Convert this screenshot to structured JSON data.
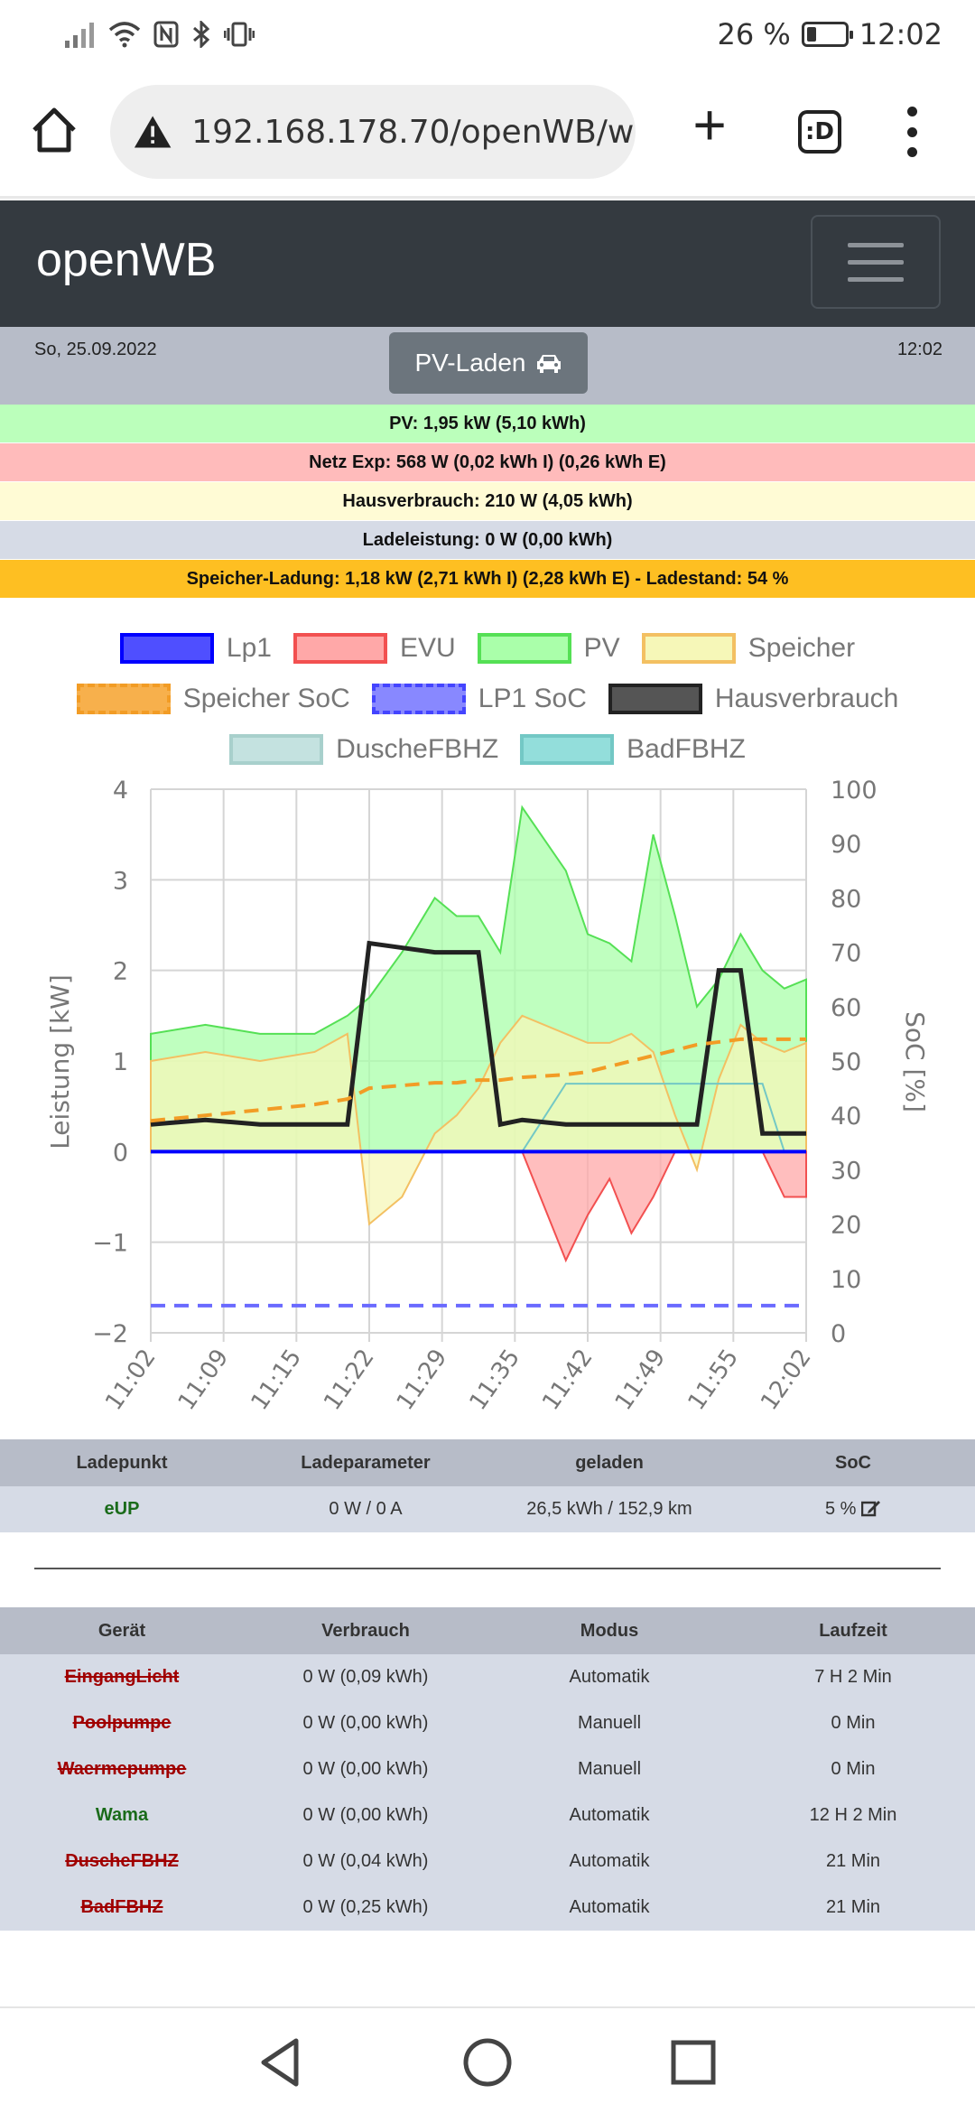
{
  "status_bar": {
    "battery": "26 %",
    "battery_level": 0.26,
    "time": "12:02"
  },
  "browser": {
    "url": "192.168.178.70/openWB/web",
    "tab_label": ":D"
  },
  "app": {
    "brand": "openWB"
  },
  "header": {
    "date": "So, 25.09.2022",
    "time": "12:02",
    "mode_button": "PV-Laden"
  },
  "info_rows": [
    {
      "text": "PV: 1,95 kW (5,10 kWh)",
      "color": "#bbffbb"
    },
    {
      "text": "Netz Exp: 568 W (0,02 kWh I) (0,26 kWh E)",
      "color": "#ffbbbb"
    },
    {
      "text": "Hausverbrauch: 210 W (4,05 kWh)",
      "color": "#fffbd5"
    },
    {
      "text": "Ladeleistung: 0 W (0,00 kWh)",
      "color": "#d6dbe6"
    },
    {
      "text": "Speicher-Ladung: 1,18 kW (2,71 kWh I) (2,28 kWh E) - Ladestand: 54 %",
      "color": "#febf22"
    }
  ],
  "legend": [
    {
      "label": "Lp1",
      "fill": "#4f4fff",
      "border": "#0000ff",
      "dashed": false
    },
    {
      "label": "EVU",
      "fill": "#ffa8a8",
      "border": "#f25050",
      "dashed": false
    },
    {
      "label": "PV",
      "fill": "#aaffaa",
      "border": "#55e055",
      "dashed": false
    },
    {
      "label": "Speicher",
      "fill": "#f6f7b8",
      "border": "#f3c062",
      "dashed": false
    },
    {
      "label": "Speicher SoC",
      "fill": "#f7b04c",
      "border": "#f29c25",
      "dashed": true
    },
    {
      "label": "LP1 SoC",
      "fill": "#8888ff",
      "border": "#4444ff",
      "dashed": true
    },
    {
      "label": "Hausverbrauch",
      "fill": "#555555",
      "border": "#222222",
      "dashed": false
    },
    {
      "label": "DuscheFBHZ",
      "fill": "#c4e2e0",
      "border": "#a8d0cc",
      "dashed": false
    },
    {
      "label": "BadFBHZ",
      "fill": "#93dedb",
      "border": "#73c8c5",
      "dashed": false
    }
  ],
  "chart_data": {
    "type": "area",
    "ylabel": "Leistung [kW]",
    "y2label": "SoC [%]",
    "ylim": [
      -2,
      4
    ],
    "y2lim": [
      0,
      100
    ],
    "yticks": [
      "4",
      "3",
      "2",
      "1",
      "0",
      "−1",
      "−2"
    ],
    "y2ticks": [
      "100",
      "90",
      "80",
      "70",
      "60",
      "50",
      "40",
      "30",
      "20",
      "10",
      "0"
    ],
    "xticks": [
      "11:02",
      "11:09",
      "11:15",
      "11:22",
      "11:29",
      "11:35",
      "11:42",
      "11:49",
      "11:55",
      "12:02"
    ],
    "grid": true,
    "x_minutes": [
      0,
      5,
      10,
      15,
      18,
      20,
      23,
      26,
      28,
      30,
      32,
      34,
      38,
      40,
      42,
      44,
      46,
      48,
      50,
      52,
      54,
      56,
      58,
      60
    ],
    "series": [
      {
        "name": "PV",
        "values": [
          1.3,
          1.4,
          1.3,
          1.3,
          1.5,
          1.7,
          2.2,
          2.8,
          2.6,
          2.6,
          2.2,
          3.8,
          3.1,
          2.4,
          2.3,
          2.1,
          3.5,
          2.6,
          1.6,
          1.9,
          2.4,
          2.0,
          1.8,
          1.9
        ]
      },
      {
        "name": "Speicher",
        "values": [
          1.0,
          1.1,
          1.0,
          1.1,
          1.3,
          -0.8,
          -0.5,
          0.2,
          0.4,
          0.7,
          1.2,
          1.5,
          1.3,
          1.2,
          1.2,
          1.3,
          1.1,
          0.4,
          -0.2,
          0.8,
          1.4,
          1.2,
          1.1,
          1.2
        ]
      },
      {
        "name": "EVU",
        "values": [
          0,
          0,
          0,
          0,
          0,
          0,
          0,
          0,
          0,
          0,
          0,
          0,
          -1.2,
          -0.7,
          -0.3,
          -0.9,
          -0.5,
          0,
          0,
          0,
          0,
          0,
          -0.5,
          -0.5
        ]
      },
      {
        "name": "Hausverbrauch",
        "values": [
          0.3,
          0.35,
          0.3,
          0.3,
          0.3,
          2.3,
          2.25,
          2.2,
          2.2,
          2.2,
          0.3,
          0.35,
          0.3,
          0.3,
          0.3,
          0.3,
          0.3,
          0.3,
          0.3,
          2.0,
          2.0,
          0.2,
          0.2,
          0.2
        ]
      },
      {
        "name": "Lp1",
        "values": [
          0,
          0,
          0,
          0,
          0,
          0,
          0,
          0,
          0,
          0,
          0,
          0,
          0,
          0,
          0,
          0,
          0,
          0,
          0,
          0,
          0,
          0,
          0,
          0
        ]
      },
      {
        "name": "Speicher SoC",
        "values": [
          39,
          40,
          41,
          42,
          43,
          45,
          45.5,
          46,
          46,
          46.5,
          46.5,
          47,
          47.5,
          48,
          49,
          50,
          51,
          52,
          53,
          53.5,
          54,
          54,
          54,
          54
        ]
      },
      {
        "name": "LP1 SoC",
        "values": [
          5,
          5,
          5,
          5,
          5,
          5,
          5,
          5,
          5,
          5,
          5,
          5,
          5,
          5,
          5,
          5,
          5,
          5,
          5,
          5,
          5,
          5,
          5,
          5
        ]
      },
      {
        "name": "BadFBHZ",
        "values": [
          0,
          0,
          0,
          0,
          0,
          0,
          0,
          0,
          0,
          0,
          0,
          0,
          0.75,
          0.75,
          0.75,
          0.75,
          0.75,
          0.75,
          0.75,
          0.75,
          0.75,
          0.75,
          0,
          0
        ]
      }
    ]
  },
  "lp_table": {
    "headers": [
      "Ladepunkt",
      "Ladeparameter",
      "geladen",
      "SoC"
    ],
    "rows": [
      {
        "name": "eUP",
        "param": "0 W / 0 A",
        "charged": "26,5 kWh / 152,9 km",
        "soc": "5 %"
      }
    ]
  },
  "dev_table": {
    "headers": [
      "Gerät",
      "Verbrauch",
      "Modus",
      "Laufzeit"
    ],
    "rows": [
      {
        "name": "EingangLicht",
        "usage": "0 W (0,09 kWh)",
        "mode": "Automatik",
        "runtime": "7 H 2 Min",
        "active": false
      },
      {
        "name": "Poolpumpe",
        "usage": "0 W (0,00 kWh)",
        "mode": "Manuell",
        "runtime": "0 Min",
        "active": false
      },
      {
        "name": "Waermepumpe",
        "usage": "0 W (0,00 kWh)",
        "mode": "Manuell",
        "runtime": "0 Min",
        "active": false
      },
      {
        "name": "Wama",
        "usage": "0 W (0,00 kWh)",
        "mode": "Automatik",
        "runtime": "12 H 2 Min",
        "active": true
      },
      {
        "name": "DuscheFBHZ",
        "usage": "0 W (0,04 kWh)",
        "mode": "Automatik",
        "runtime": "21 Min",
        "active": false
      },
      {
        "name": "BadFBHZ",
        "usage": "0 W (0,25 kWh)",
        "mode": "Automatik",
        "runtime": "21 Min",
        "active": false
      }
    ]
  }
}
